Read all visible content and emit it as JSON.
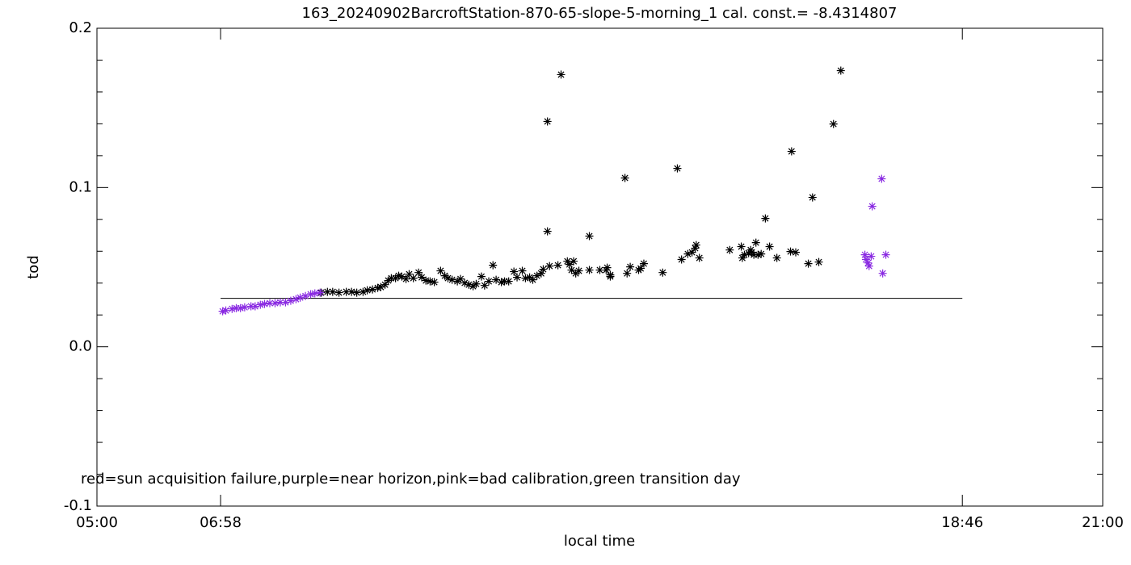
{
  "chart_data": {
    "type": "scatter",
    "title": "163_20240902BarcroftStation-870-65-slope-5-morning_1 cal. const.= -8.4314807",
    "x_label": "local time",
    "y_label": "tod",
    "annotation": "red=sun acquisition failure,purple=near horizon,pink=bad calibration,green transition day",
    "xlim": [
      300,
      1260
    ],
    "xticks": [
      {
        "value": 300,
        "label": "05:00"
      },
      {
        "value": 418,
        "label": "06:58"
      },
      {
        "value": 1126,
        "label": "18:46"
      },
      {
        "value": 1260,
        "label": "21:00"
      }
    ],
    "ylim": [
      -0.1,
      0.2
    ],
    "yticks": [
      -0.1,
      {
        "value": 0,
        "label": "0.0"
      },
      0.1,
      0.2
    ],
    "yminorticks": [
      -0.08,
      -0.06,
      -0.04,
      -0.02,
      0.02,
      0.04,
      0.06,
      0.08,
      0.12,
      0.14,
      0.16,
      0.18
    ],
    "reference_line": {
      "color": "#000000",
      "x": [
        418,
        1126
      ],
      "values": [
        0.0304,
        0.0304
      ]
    },
    "series": [
      {
        "color": "#000000",
        "x": [
          514,
          520,
          525,
          531,
          538,
          543,
          548,
          554,
          558,
          563,
          568,
          571,
          575,
          578,
          581,
          585,
          588,
          591,
          595,
          598,
          602,
          607,
          610,
          614,
          618,
          622,
          628,
          632,
          635,
          639,
          644,
          647,
          651,
          655,
          659,
          662,
          667,
          670,
          674,
          678,
          681,
          686,
          689,
          693,
          698,
          701,
          706,
          709,
          713,
          716,
          720,
          724,
          726,
          730,
          730,
          732,
          740,
          743,
          749,
          751,
          753,
          755,
          757,
          760,
          770,
          770,
          780,
          786,
          787,
          790,
          790,
          804,
          806,
          809,
          817,
          819,
          822,
          840,
          854,
          858,
          864,
          868,
          871,
          872,
          875,
          904,
          915,
          916,
          918,
          922,
          924,
          925,
          927,
          929,
          931,
          934,
          938,
          942,
          949,
          962,
          963,
          967,
          979,
          983,
          989,
          1003,
          1010
        ],
        "values": [
          0.034,
          0.0345,
          0.0345,
          0.034,
          0.0345,
          0.0345,
          0.034,
          0.0345,
          0.0355,
          0.036,
          0.037,
          0.0375,
          0.039,
          0.0416,
          0.0431,
          0.0431,
          0.0446,
          0.0441,
          0.0426,
          0.0456,
          0.0431,
          0.0466,
          0.0436,
          0.0416,
          0.0411,
          0.0406,
          0.0477,
          0.0446,
          0.0431,
          0.0421,
          0.0411,
          0.0426,
          0.0401,
          0.039,
          0.038,
          0.0395,
          0.0441,
          0.0385,
          0.0411,
          0.0512,
          0.0421,
          0.0406,
          0.0411,
          0.0411,
          0.0472,
          0.0436,
          0.0477,
          0.0431,
          0.0436,
          0.0421,
          0.0446,
          0.0461,
          0.0487,
          0.1415,
          0.0725,
          0.0507,
          0.0512,
          0.1709,
          0.0537,
          0.0517,
          0.0482,
          0.0537,
          0.0461,
          0.0477,
          0.0695,
          0.0482,
          0.0482,
          0.0482,
          0.0497,
          0.0451,
          0.0441,
          0.106,
          0.0461,
          0.0502,
          0.0482,
          0.0492,
          0.0522,
          0.0466,
          0.112,
          0.0548,
          0.0583,
          0.0593,
          0.0619,
          0.0639,
          0.0558,
          0.0608,
          0.0629,
          0.0558,
          0.0578,
          0.0588,
          0.0608,
          0.0593,
          0.0578,
          0.0654,
          0.0578,
          0.0583,
          0.0806,
          0.0629,
          0.0558,
          0.0598,
          0.1227,
          0.0593,
          0.0522,
          0.0938,
          0.0532,
          0.1399,
          0.1734
        ]
      },
      {
        "color": "#8a2be2",
        "x": [
          420,
          423,
          429,
          433,
          437,
          441,
          447,
          451,
          456,
          460,
          465,
          470,
          475,
          480,
          485,
          490,
          494,
          499,
          504,
          508,
          513,
          1033,
          1034,
          1036,
          1037,
          1039,
          1040,
          1049,
          1050,
          1053
        ],
        "values": [
          0.0223,
          0.0228,
          0.0238,
          0.0243,
          0.0243,
          0.0248,
          0.0254,
          0.0254,
          0.0264,
          0.0269,
          0.0274,
          0.0274,
          0.0279,
          0.0279,
          0.0289,
          0.0299,
          0.0309,
          0.0319,
          0.033,
          0.0335,
          0.034,
          0.0578,
          0.0548,
          0.0527,
          0.0507,
          0.0568,
          0.0882,
          0.1055,
          0.0461,
          0.0578
        ]
      }
    ]
  }
}
